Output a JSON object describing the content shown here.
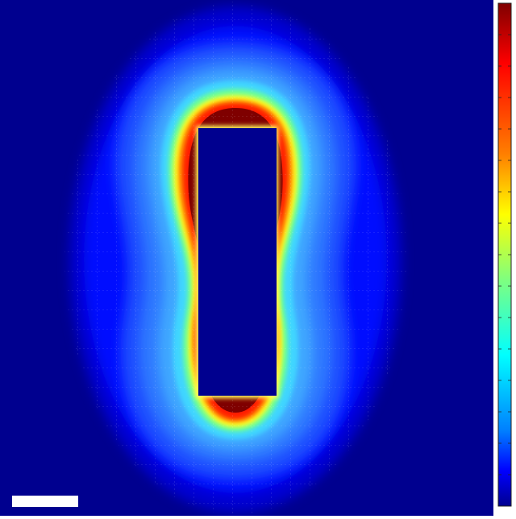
{
  "figure": {
    "type": "field-intensity-map",
    "colormap": "jet",
    "background_color": "#00008f",
    "object_color": "#00008f",
    "high_color": "#7f0000",
    "grid_lines": true,
    "grid_line_color": "#ffffff"
  },
  "scale_bar": {
    "color": "#ffffff",
    "label": ""
  },
  "colorbar": {
    "orientation": "vertical",
    "position": "right",
    "tick_labels": [],
    "stops": [
      "#7f0000",
      "#ff0000",
      "#ff7f00",
      "#ffff00",
      "#7fff7f",
      "#00ffff",
      "#007fff",
      "#0000ff",
      "#00008f"
    ]
  }
}
